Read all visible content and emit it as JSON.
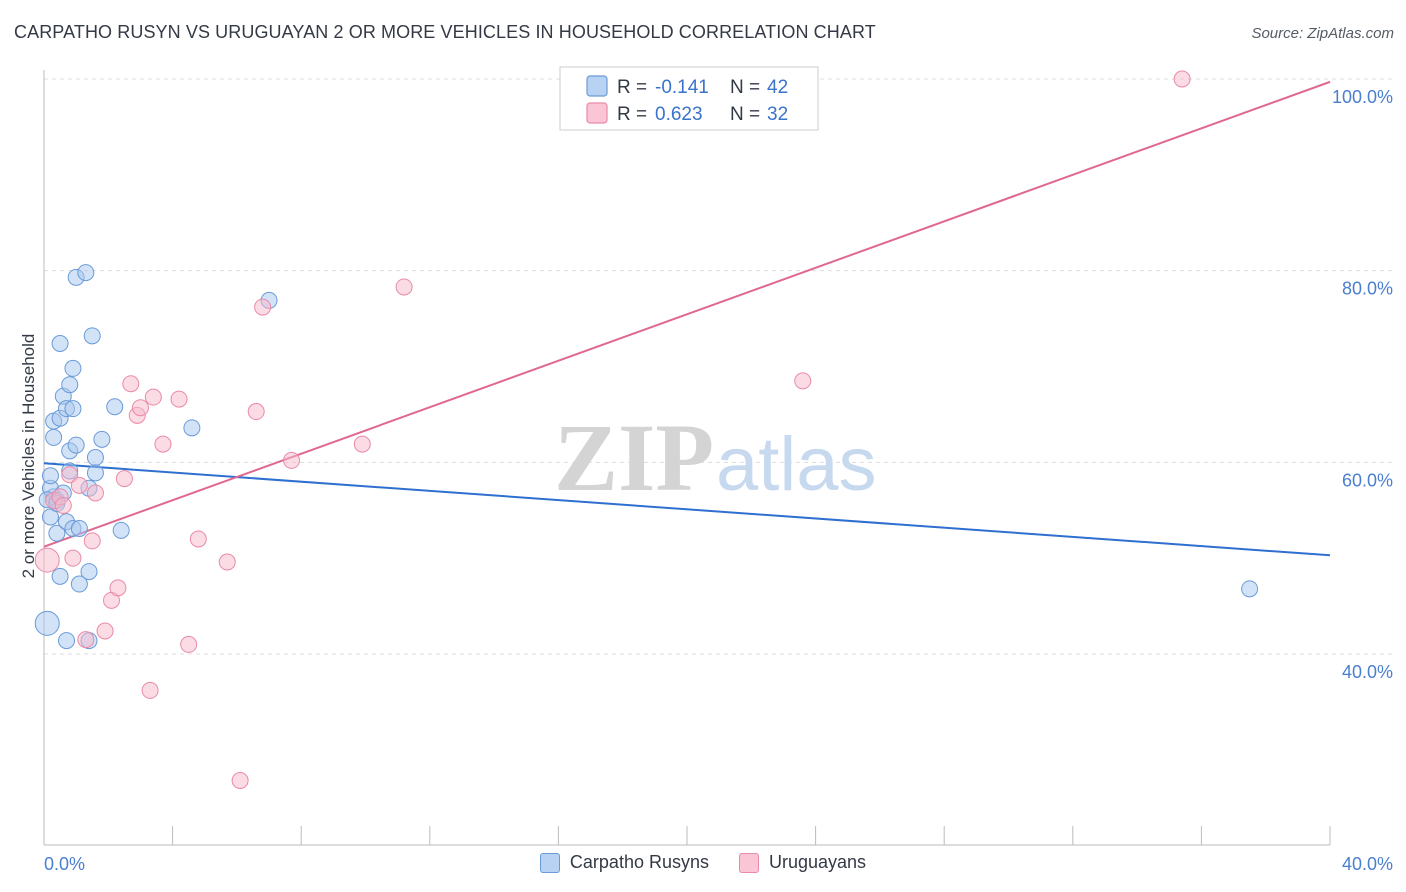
{
  "title": "CARPATHO RUSYN VS URUGUAYAN 2 OR MORE VEHICLES IN HOUSEHOLD CORRELATION CHART",
  "source": "Source: ZipAtlas.com",
  "watermark": {
    "zip": "ZIP",
    "atlas": "atlas"
  },
  "legend_box": {
    "rows": [
      {
        "r_label": "R =",
        "r_value": "-0.141",
        "n_label": "N =",
        "n_value": "42"
      },
      {
        "r_label": "R =",
        "r_value": "0.623",
        "n_label": "N =",
        "n_value": "32"
      }
    ]
  },
  "colors": {
    "blue_fill": "#a8c8f0",
    "blue_stroke": "#6a9bd8",
    "blue_line": "#2e6fcf",
    "pink_fill": "#f7b9cc",
    "pink_stroke": "#e98aa8",
    "pink_line": "#e06890",
    "grid": "#dddddd",
    "tick_text": "#4a7fd0"
  },
  "chart_data": {
    "type": "scatter",
    "title": "CARPATHO RUSYN VS URUGUAYAN 2 OR MORE VEHICLES IN HOUSEHOLD CORRELATION CHART",
    "xlabel": "",
    "ylabel": "2 or more Vehicles in Household",
    "xlim": [
      0,
      40
    ],
    "ylim": [
      20,
      103
    ],
    "x_tick_labels": [
      "0.0%",
      "40.0%"
    ],
    "y_ticks": [
      40,
      60,
      80,
      100
    ],
    "y_tick_labels": [
      "40.0%",
      "60.0%",
      "80.0%",
      "100.0%"
    ],
    "grid": true,
    "legend_position": "bottom-center",
    "series": [
      {
        "name": "Carpatho Rusyns",
        "color": "blue",
        "r": -0.141,
        "n": 42,
        "trend": {
          "x": [
            0,
            40
          ],
          "y": [
            59.9,
            50.3
          ]
        },
        "points": [
          {
            "x": 0.1,
            "y": 43.2,
            "big": true
          },
          {
            "x": 0.3,
            "y": 56.4
          },
          {
            "x": 0.2,
            "y": 57.3
          },
          {
            "x": 0.4,
            "y": 56.0
          },
          {
            "x": 0.2,
            "y": 54.3
          },
          {
            "x": 0.3,
            "y": 62.6
          },
          {
            "x": 0.3,
            "y": 64.3
          },
          {
            "x": 0.4,
            "y": 52.6
          },
          {
            "x": 0.5,
            "y": 48.1
          },
          {
            "x": 0.5,
            "y": 72.4
          },
          {
            "x": 0.5,
            "y": 64.6
          },
          {
            "x": 0.6,
            "y": 66.9
          },
          {
            "x": 0.6,
            "y": 56.8
          },
          {
            "x": 0.7,
            "y": 53.8
          },
          {
            "x": 0.7,
            "y": 65.6
          },
          {
            "x": 0.8,
            "y": 59.1
          },
          {
            "x": 0.8,
            "y": 68.1
          },
          {
            "x": 0.8,
            "y": 61.2
          },
          {
            "x": 0.9,
            "y": 69.8
          },
          {
            "x": 0.9,
            "y": 65.6
          },
          {
            "x": 0.9,
            "y": 53.1
          },
          {
            "x": 1.0,
            "y": 61.8
          },
          {
            "x": 1.0,
            "y": 79.3
          },
          {
            "x": 1.1,
            "y": 53.1
          },
          {
            "x": 1.1,
            "y": 47.3
          },
          {
            "x": 1.3,
            "y": 79.8
          },
          {
            "x": 1.4,
            "y": 48.6
          },
          {
            "x": 1.4,
            "y": 57.3
          },
          {
            "x": 1.5,
            "y": 73.2
          },
          {
            "x": 1.6,
            "y": 60.5
          },
          {
            "x": 1.6,
            "y": 58.9
          },
          {
            "x": 1.8,
            "y": 62.4
          },
          {
            "x": 2.2,
            "y": 65.8
          },
          {
            "x": 2.4,
            "y": 52.9
          },
          {
            "x": 4.6,
            "y": 63.6
          },
          {
            "x": 7.0,
            "y": 76.9
          },
          {
            "x": 0.7,
            "y": 41.4
          },
          {
            "x": 1.4,
            "y": 41.4
          },
          {
            "x": 0.1,
            "y": 56.1
          },
          {
            "x": 0.4,
            "y": 55.7
          },
          {
            "x": 0.2,
            "y": 58.6
          },
          {
            "x": 37.5,
            "y": 46.8
          }
        ]
      },
      {
        "name": "Uruguayans",
        "color": "pink",
        "r": 0.623,
        "n": 32,
        "trend": {
          "x": [
            0,
            40
          ],
          "y": [
            51.2,
            99.7
          ]
        },
        "points": [
          {
            "x": 0.1,
            "y": 49.8,
            "big": true
          },
          {
            "x": 0.3,
            "y": 56.0
          },
          {
            "x": 0.5,
            "y": 56.4
          },
          {
            "x": 0.6,
            "y": 55.5
          },
          {
            "x": 0.8,
            "y": 58.7
          },
          {
            "x": 0.9,
            "y": 50.0
          },
          {
            "x": 1.1,
            "y": 57.6
          },
          {
            "x": 1.3,
            "y": 41.5
          },
          {
            "x": 1.5,
            "y": 51.8
          },
          {
            "x": 1.6,
            "y": 56.8
          },
          {
            "x": 1.9,
            "y": 42.4
          },
          {
            "x": 2.1,
            "y": 45.6
          },
          {
            "x": 2.3,
            "y": 46.9
          },
          {
            "x": 2.5,
            "y": 58.3
          },
          {
            "x": 2.7,
            "y": 68.2
          },
          {
            "x": 2.9,
            "y": 64.9
          },
          {
            "x": 3.0,
            "y": 65.7
          },
          {
            "x": 3.4,
            "y": 66.8
          },
          {
            "x": 3.3,
            "y": 36.2
          },
          {
            "x": 3.7,
            "y": 61.9
          },
          {
            "x": 4.2,
            "y": 66.6
          },
          {
            "x": 4.5,
            "y": 41.0
          },
          {
            "x": 4.8,
            "y": 52.0
          },
          {
            "x": 5.7,
            "y": 49.6
          },
          {
            "x": 6.1,
            "y": 26.8
          },
          {
            "x": 6.6,
            "y": 65.3
          },
          {
            "x": 6.8,
            "y": 76.2
          },
          {
            "x": 7.7,
            "y": 60.2
          },
          {
            "x": 9.9,
            "y": 61.9
          },
          {
            "x": 11.2,
            "y": 78.3
          },
          {
            "x": 23.6,
            "y": 68.5
          },
          {
            "x": 35.4,
            "y": 100.0
          }
        ]
      }
    ]
  }
}
